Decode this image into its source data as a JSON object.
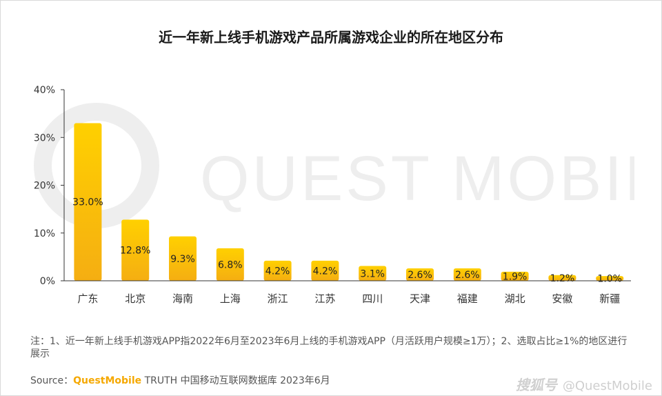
{
  "title": "近一年新上线手机游戏产品所属游戏企业的所在地区分布",
  "watermark_text": "QUEST MOBILE",
  "note": "注：1、近一年新上线手机游戏APP指2022年6月至2023年6月上线的手机游戏APP（月活跃用户规模≥1万）；2、选取占比≥1%的地区进行展示",
  "source": {
    "label": "Source：",
    "brand": "QuestMobile",
    "rest": " TRUTH 中国移动互联网数据库 2023年6月"
  },
  "credit": {
    "site": "搜狐号",
    "handle": "@QuestMobile"
  },
  "colors": {
    "bar_top": "#ffd000",
    "bar_bottom": "#f5ae12",
    "axis": "#333333",
    "watermark": "#eeeeee"
  },
  "chart_data": {
    "type": "bar",
    "title": "近一年新上线手机游戏产品所属游戏企业的所在地区分布",
    "categories": [
      "广东",
      "北京",
      "海南",
      "上海",
      "浙江",
      "江苏",
      "四川",
      "天津",
      "福建",
      "湖北",
      "安徽",
      "新疆"
    ],
    "values": [
      33.0,
      12.8,
      9.3,
      6.8,
      4.2,
      4.2,
      3.1,
      2.6,
      2.6,
      1.9,
      1.2,
      1.0
    ],
    "data_labels": [
      "33.0%",
      "12.8%",
      "9.3%",
      "6.8%",
      "4.2%",
      "4.2%",
      "3.1%",
      "2.6%",
      "2.6%",
      "1.9%",
      "1.2%",
      "1.0%"
    ],
    "yticks": [
      0,
      10,
      20,
      30,
      40
    ],
    "ytick_labels": [
      "0%",
      "10%",
      "20%",
      "30%",
      "40%"
    ],
    "ylim": [
      0,
      40
    ],
    "xlabel": "",
    "ylabel": "",
    "grid": false,
    "legend": "none"
  }
}
